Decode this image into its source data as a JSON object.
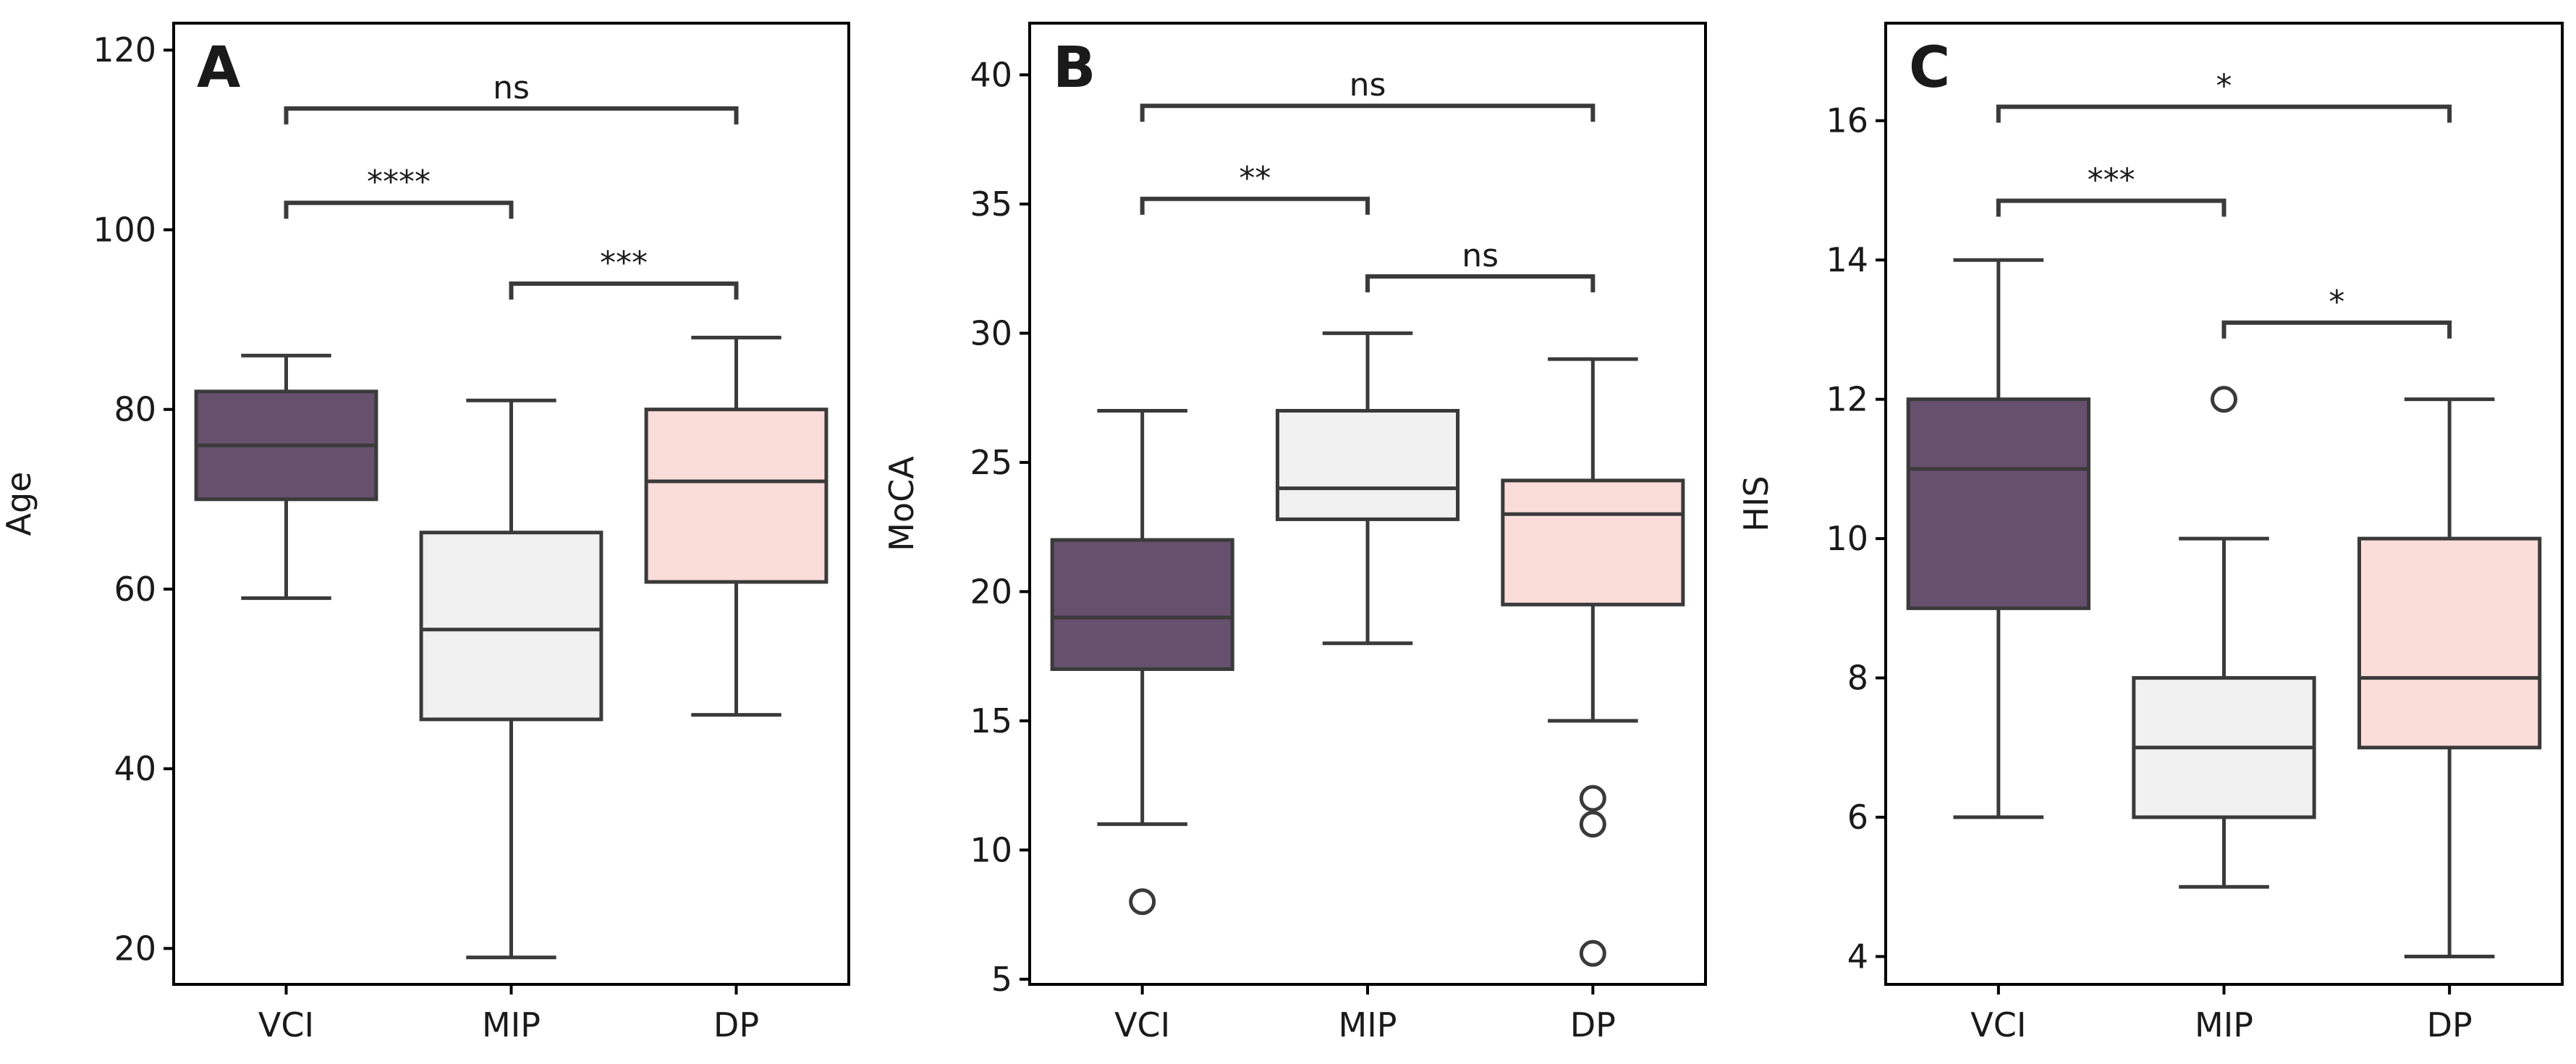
{
  "chart_data": [
    {
      "type": "box",
      "panel_label": "A",
      "ylabel": "Age",
      "xlabel": "",
      "categories": [
        "VCI",
        "MIP",
        "DP"
      ],
      "ylim": [
        16,
        123
      ],
      "yticks": [
        20,
        40,
        60,
        80,
        100,
        120
      ],
      "boxes": [
        {
          "group": "VCI",
          "whisker_low": 59,
          "q1": 70,
          "median": 76,
          "q3": 82,
          "whisker_high": 86,
          "outliers": []
        },
        {
          "group": "MIP",
          "whisker_low": 19,
          "q1": 45.5,
          "median": 55.5,
          "q3": 66.3,
          "whisker_high": 81,
          "outliers": []
        },
        {
          "group": "DP",
          "whisker_low": 46,
          "q1": 60.8,
          "median": 72,
          "q3": 80,
          "whisker_high": 88,
          "outliers": []
        }
      ],
      "comparisons": [
        {
          "from": "VCI",
          "to": "MIP",
          "label": "****",
          "y": 103
        },
        {
          "from": "MIP",
          "to": "DP",
          "label": "***",
          "y": 94
        },
        {
          "from": "VCI",
          "to": "DP",
          "label": "ns",
          "y": 113.5
        }
      ]
    },
    {
      "type": "box",
      "panel_label": "B",
      "ylabel": "MoCA",
      "xlabel": "",
      "categories": [
        "VCI",
        "MIP",
        "DP"
      ],
      "ylim": [
        4.8,
        42
      ],
      "yticks": [
        5,
        10,
        15,
        20,
        25,
        30,
        35,
        40
      ],
      "boxes": [
        {
          "group": "VCI",
          "whisker_low": 11,
          "q1": 17,
          "median": 19,
          "q3": 22,
          "whisker_high": 27,
          "outliers": [
            8
          ]
        },
        {
          "group": "MIP",
          "whisker_low": 18,
          "q1": 22.8,
          "median": 24,
          "q3": 27,
          "whisker_high": 30,
          "outliers": []
        },
        {
          "group": "DP",
          "whisker_low": 15,
          "q1": 19.5,
          "median": 23,
          "q3": 24.3,
          "whisker_high": 29,
          "outliers": [
            12,
            11,
            6
          ]
        }
      ],
      "comparisons": [
        {
          "from": "VCI",
          "to": "MIP",
          "label": "**",
          "y": 35.2
        },
        {
          "from": "MIP",
          "to": "DP",
          "label": "ns",
          "y": 32.2
        },
        {
          "from": "VCI",
          "to": "DP",
          "label": "ns",
          "y": 38.8
        }
      ]
    },
    {
      "type": "box",
      "panel_label": "C",
      "ylabel": "HIS",
      "xlabel": "",
      "categories": [
        "VCI",
        "MIP",
        "DP"
      ],
      "ylim": [
        3.6,
        17.4
      ],
      "yticks": [
        4,
        6,
        8,
        10,
        12,
        14,
        16
      ],
      "boxes": [
        {
          "group": "VCI",
          "whisker_low": 6,
          "q1": 9,
          "median": 11,
          "q3": 12,
          "whisker_high": 14,
          "outliers": []
        },
        {
          "group": "MIP",
          "whisker_low": 5,
          "q1": 6,
          "median": 7,
          "q3": 8,
          "whisker_high": 10,
          "outliers": [
            12
          ]
        },
        {
          "group": "DP",
          "whisker_low": 4,
          "q1": 7,
          "median": 8,
          "q3": 10,
          "whisker_high": 12,
          "outliers": []
        }
      ],
      "comparisons": [
        {
          "from": "VCI",
          "to": "MIP",
          "label": "***",
          "y": 14.85
        },
        {
          "from": "MIP",
          "to": "DP",
          "label": "*",
          "y": 13.1
        },
        {
          "from": "VCI",
          "to": "DP",
          "label": "*",
          "y": 16.2
        }
      ]
    }
  ],
  "colors": {
    "VCI": "#66506e",
    "MIP": "#f1f1f1",
    "DP": "#fadcd9",
    "line": "#3a3a3a"
  }
}
